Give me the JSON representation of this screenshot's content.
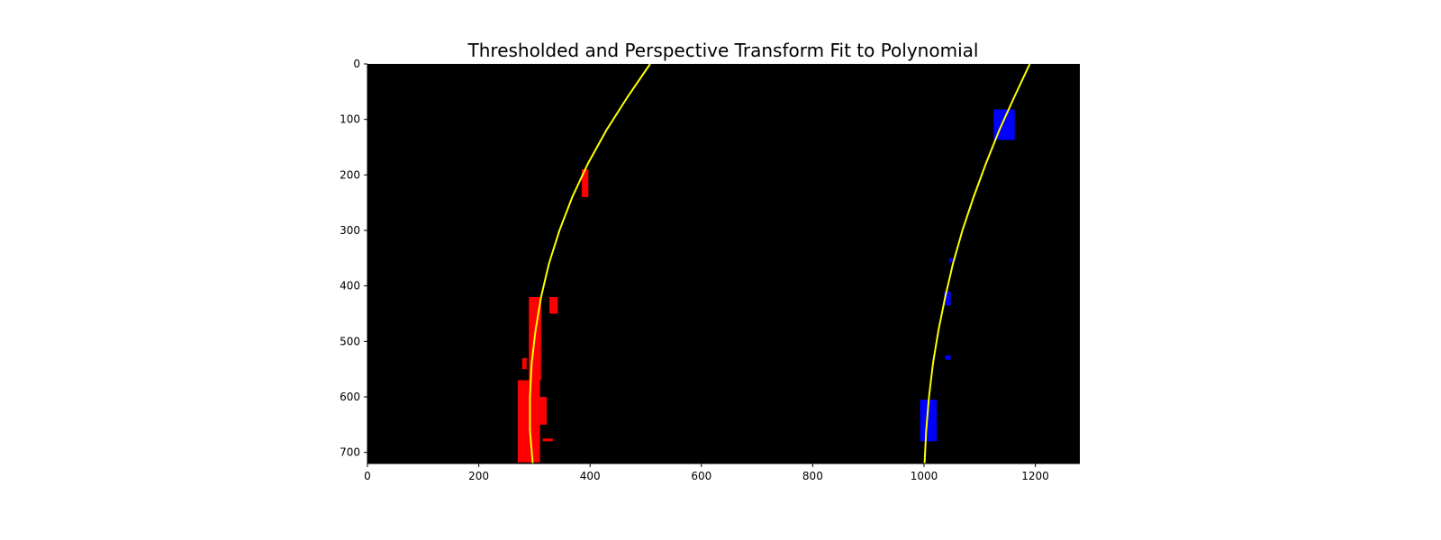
{
  "chart_data": {
    "type": "image",
    "title": "Thresholded and Perspective Transform Fit to Polynomial",
    "xlabel": "",
    "ylabel": "",
    "xlim": [
      0,
      1280
    ],
    "ylim": [
      720,
      0
    ],
    "x_ticks": [
      0,
      200,
      400,
      600,
      800,
      1000,
      1200
    ],
    "y_ticks": [
      0,
      100,
      200,
      300,
      400,
      500,
      600,
      700
    ],
    "background_color": "#000000",
    "fit_line_color": "#ffff00",
    "left_lane_color": "#ff0000",
    "right_lane_color": "#0000ff",
    "left_fit_curve": {
      "y": [
        0,
        60,
        120,
        180,
        240,
        300,
        360,
        420,
        480,
        540,
        600,
        660,
        720
      ],
      "x": [
        508,
        467,
        429,
        396,
        368,
        345,
        326,
        312,
        302,
        295,
        292,
        292,
        297
      ]
    },
    "right_fit_curve": {
      "y": [
        0,
        60,
        120,
        180,
        240,
        300,
        360,
        420,
        480,
        540,
        600,
        660,
        720
      ],
      "x": [
        1190,
        1162,
        1135,
        1111,
        1089,
        1069,
        1052,
        1038,
        1026,
        1016,
        1009,
        1004,
        1001
      ]
    },
    "left_lane_pixels": [
      {
        "x": 270,
        "y": 570,
        "w": 40,
        "h": 148
      },
      {
        "x": 290,
        "y": 420,
        "w": 22,
        "h": 150
      },
      {
        "x": 327,
        "y": 420,
        "w": 15,
        "h": 30
      },
      {
        "x": 385,
        "y": 190,
        "w": 12,
        "h": 50
      },
      {
        "x": 278,
        "y": 530,
        "w": 8,
        "h": 20
      },
      {
        "x": 310,
        "y": 600,
        "w": 12,
        "h": 50
      },
      {
        "x": 315,
        "y": 675,
        "w": 18,
        "h": 5
      }
    ],
    "right_lane_pixels": [
      {
        "x": 993,
        "y": 605,
        "w": 30,
        "h": 75
      },
      {
        "x": 1125,
        "y": 82,
        "w": 38,
        "h": 55
      },
      {
        "x": 1045,
        "y": 350,
        "w": 6,
        "h": 8
      },
      {
        "x": 1036,
        "y": 410,
        "w": 12,
        "h": 25
      },
      {
        "x": 1038,
        "y": 525,
        "w": 10,
        "h": 8
      }
    ]
  }
}
